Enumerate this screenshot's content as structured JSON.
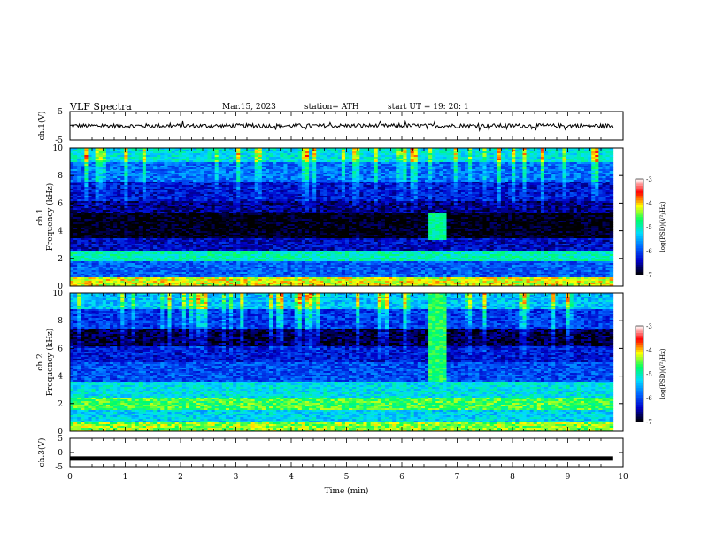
{
  "header": {
    "title": "VLF  Spectra",
    "date": "Mar.15, 2023",
    "station": "station= ATH",
    "start_ut": "start  UT  =    19: 20: 1"
  },
  "chart_data": [
    {
      "type": "line",
      "name": "ch1-waveform",
      "ylabel": "ch.1(V)",
      "x_range": [
        0,
        9.82
      ],
      "ylim": [
        -5,
        5
      ],
      "yticks": [
        "5",
        "-5"
      ],
      "approx_level": 0,
      "approx_amplitude": 1.5
    },
    {
      "type": "heatmap",
      "name": "ch1-spectrogram",
      "ylabel": "ch.1\nFrequency  (kHz)",
      "xlim": [
        0,
        10
      ],
      "ylim": [
        0,
        10
      ],
      "yticks": [
        "0",
        "2",
        "4",
        "6",
        "8",
        "10"
      ],
      "colorbar": {
        "label": "log(PSD)(V²/Hz)",
        "ticks": [
          "-3",
          "-4",
          "-5",
          "-6",
          "-7"
        ],
        "range": [
          -7,
          -3
        ]
      },
      "bands": [
        {
          "f": [
            0,
            0.6
          ],
          "level": -4.2
        },
        {
          "f": [
            0.6,
            1.8
          ],
          "level": -5.9
        },
        {
          "f": [
            1.8,
            2.6
          ],
          "level": -5.0
        },
        {
          "f": [
            2.6,
            3.4
          ],
          "level": -6.4
        },
        {
          "f": [
            3.4,
            5.2
          ],
          "level": -7.0
        },
        {
          "f": [
            5.2,
            6.2
          ],
          "level": -6.6
        },
        {
          "f": [
            6.2,
            7.6
          ],
          "level": -6.3
        },
        {
          "f": [
            7.6,
            9.0
          ],
          "level": -5.8
        },
        {
          "f": [
            9.0,
            10
          ],
          "level": -5.2
        }
      ],
      "event": {
        "t": [
          6.5,
          6.8
        ],
        "f": [
          3.3,
          5.2
        ],
        "level": -4.9
      }
    },
    {
      "type": "heatmap",
      "name": "ch2-spectrogram",
      "ylabel": "ch.2\nFrequency  (kHz)",
      "xlim": [
        0,
        10
      ],
      "ylim": [
        0,
        10
      ],
      "yticks": [
        "0",
        "2",
        "4",
        "6",
        "8",
        "10"
      ],
      "colorbar": {
        "label": "log(PSD)(V²/Hz)",
        "ticks": [
          "-3",
          "-4",
          "-5",
          "-6",
          "-7"
        ],
        "range": [
          -7,
          -3
        ]
      },
      "bands": [
        {
          "f": [
            0,
            0.6
          ],
          "level": -4.4
        },
        {
          "f": [
            0.6,
            1.6
          ],
          "level": -5.3
        },
        {
          "f": [
            1.6,
            2.4
          ],
          "level": -4.6
        },
        {
          "f": [
            2.4,
            3.6
          ],
          "level": -5.2
        },
        {
          "f": [
            3.6,
            5.0
          ],
          "level": -6.0
        },
        {
          "f": [
            5.0,
            6.2
          ],
          "level": -6.3
        },
        {
          "f": [
            6.2,
            7.4
          ],
          "level": -6.8
        },
        {
          "f": [
            7.4,
            8.8
          ],
          "level": -6.1
        },
        {
          "f": [
            8.8,
            10
          ],
          "level": -5.4
        }
      ],
      "event": {
        "t": [
          6.45,
          6.8
        ],
        "f": [
          3.6,
          10
        ],
        "level": -4.7
      }
    },
    {
      "type": "line",
      "name": "ch3-waveform",
      "ylabel": "ch.3(V)",
      "xlabel": "Time  (min)",
      "x_range": [
        0,
        9.82
      ],
      "ylim": [
        -5,
        5
      ],
      "yticks": [
        "5",
        "0",
        "-5"
      ],
      "approx_level": -2,
      "xticks": [
        "0",
        "1",
        "2",
        "3",
        "4",
        "5",
        "6",
        "7",
        "8",
        "9",
        "10"
      ],
      "xlim": [
        0,
        10
      ]
    }
  ],
  "colors": {
    "axis": "#000000",
    "trace": "#000000",
    "colormap": [
      "#000000",
      "#0000c8",
      "#0064ff",
      "#00dcff",
      "#00ff64",
      "#ffff00",
      "#ff0000",
      "#ffffff"
    ]
  }
}
